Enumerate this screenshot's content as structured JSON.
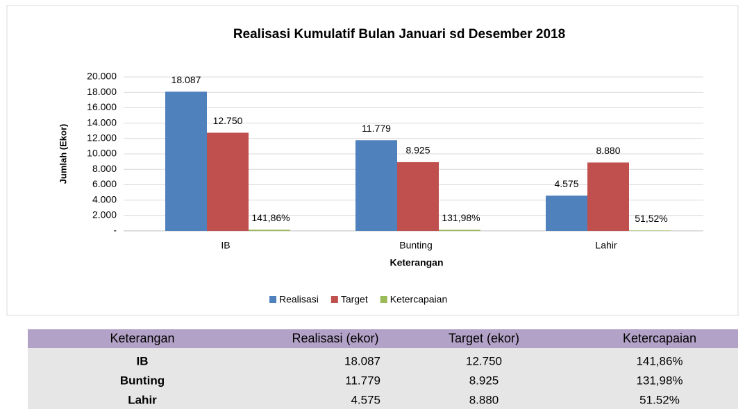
{
  "chart_data": {
    "type": "bar",
    "title": "Realisasi Kumulatif Bulan Januari sd Desember 2018",
    "ylabel": "Jumlah (Ekor)",
    "xlabel": "Keterangan",
    "categories": [
      "IB",
      "Bunting",
      "Lahir"
    ],
    "series": [
      {
        "name": "Realisasi",
        "color": "#4f81bd",
        "values": [
          18087,
          11779,
          4575
        ],
        "value_labels": [
          "18.087",
          "11.779",
          "4.575"
        ]
      },
      {
        "name": "Target",
        "color": "#c0504d",
        "values": [
          12750,
          8925,
          8880
        ],
        "value_labels": [
          "12.750",
          "8.925",
          "8.880"
        ]
      },
      {
        "name": "Ketercapaian",
        "color": "#9bbb59",
        "values": [
          141.86,
          131.98,
          51.52
        ],
        "value_labels": [
          "141,86%",
          "131,98%",
          "51,52%"
        ]
      }
    ],
    "ylim": [
      0,
      20000
    ],
    "yticks": [
      {
        "value": 0,
        "label": "-"
      },
      {
        "value": 2000,
        "label": "2.000"
      },
      {
        "value": 4000,
        "label": "4.000"
      },
      {
        "value": 6000,
        "label": "6.000"
      },
      {
        "value": 8000,
        "label": "8.000"
      },
      {
        "value": 10000,
        "label": "10.000"
      },
      {
        "value": 12000,
        "label": "12.000"
      },
      {
        "value": 14000,
        "label": "14.000"
      },
      {
        "value": 16000,
        "label": "16.000"
      },
      {
        "value": 18000,
        "label": "18.000"
      },
      {
        "value": 20000,
        "label": "20.000"
      }
    ],
    "grid": true,
    "legend": "bottom"
  },
  "table": {
    "header": [
      "Keterangan",
      "Realisasi (ekor)",
      "Target (ekor)",
      "Ketercapaian"
    ],
    "rows": [
      [
        "IB",
        "18.087",
        "12.750",
        "141,86%"
      ],
      [
        "Bunting",
        "11.779",
        "8.925",
        "131,98%"
      ],
      [
        "Lahir",
        "4.575",
        "8.880",
        "51.52%"
      ]
    ]
  }
}
